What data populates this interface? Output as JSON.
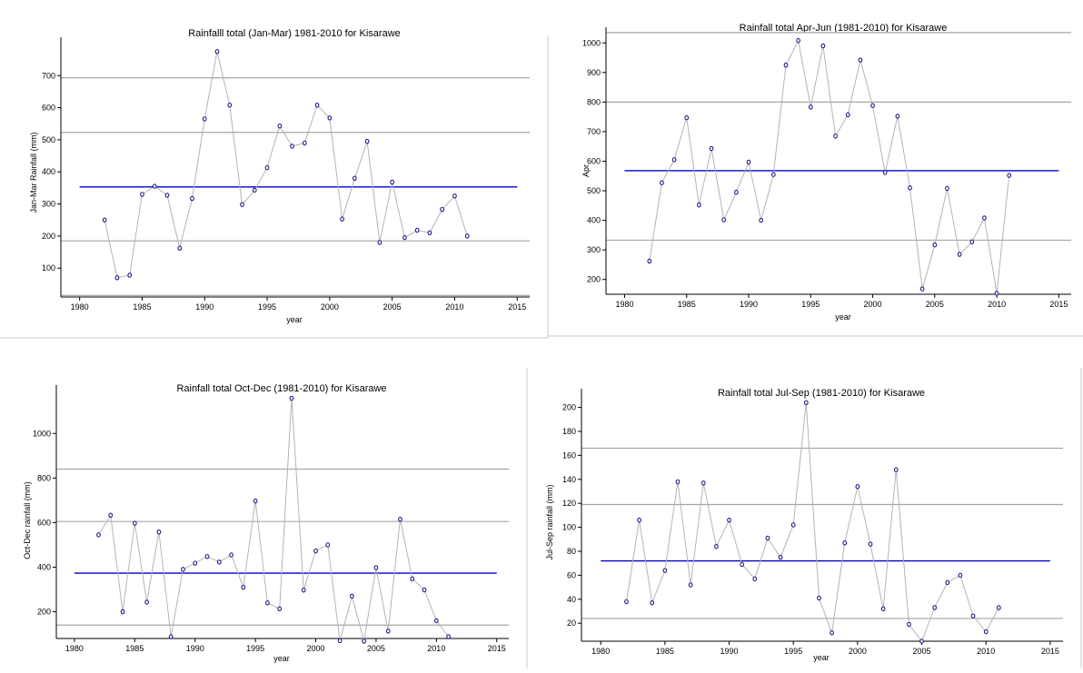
{
  "chart_data": [
    {
      "type": "line",
      "title": "Rainfalll total (Jan-Mar) 1981-2010 for Kisarawe",
      "xlabel": "year",
      "ylabel": "Jan-Mar Rainfall (mm)",
      "xlim": [
        1978.5,
        2016
      ],
      "ylim": [
        10,
        780
      ],
      "xticks": [
        1980,
        1985,
        1990,
        1995,
        2000,
        2005,
        2010,
        2015
      ],
      "yticks": [
        100,
        200,
        300,
        400,
        500,
        600,
        700
      ],
      "x": [
        1982,
        1983,
        1984,
        1985,
        1986,
        1987,
        1988,
        1989,
        1990,
        1991,
        1992,
        1993,
        1994,
        1995,
        1996,
        1997,
        1998,
        1999,
        2000,
        2001,
        2002,
        2003,
        2004,
        2005,
        2006,
        2007,
        2008,
        2009,
        2010,
        2011
      ],
      "y": [
        250,
        70,
        78,
        330,
        355,
        327,
        162,
        317,
        565,
        775,
        608,
        298,
        343,
        413,
        543,
        480,
        490,
        608,
        568,
        253,
        380,
        495,
        180,
        368,
        195,
        218,
        210,
        283,
        325,
        200
      ],
      "mean": 353,
      "reference_lines": [
        15,
        185,
        523,
        693
      ],
      "colors": {
        "series": "#b4b4b4",
        "marker": "#1a1a8c",
        "mean": "#0000c8",
        "ref": "#a6a6a6",
        "axis": "#000000"
      }
    },
    {
      "type": "line",
      "title": "Rainfall total  Apr-Jun (1981-2010) for Kisarawe",
      "xlabel": "year",
      "ylabel": "Apr",
      "xlim": [
        1978.5,
        2016
      ],
      "ylim": [
        150,
        1010
      ],
      "xticks": [
        1980,
        1985,
        1990,
        1995,
        2000,
        2005,
        2010,
        2015
      ],
      "yticks": [
        200,
        300,
        400,
        500,
        600,
        700,
        800,
        900,
        1000
      ],
      "x": [
        1982,
        1983,
        1984,
        1985,
        1986,
        1987,
        1988,
        1989,
        1990,
        1991,
        1992,
        1993,
        1994,
        1995,
        1996,
        1997,
        1998,
        1999,
        2000,
        2001,
        2002,
        2003,
        2004,
        2005,
        2006,
        2007,
        2008,
        2009,
        2010,
        2011
      ],
      "y": [
        262,
        527,
        605,
        747,
        452,
        643,
        402,
        495,
        597,
        400,
        555,
        925,
        1008,
        783,
        990,
        685,
        757,
        942,
        788,
        562,
        752,
        510,
        168,
        317,
        508,
        285,
        327,
        408,
        153,
        552
      ],
      "mean": 568,
      "reference_lines": [
        333,
        800,
        1035
      ],
      "colors": {
        "series": "#b4b4b4",
        "marker": "#1a1a8c",
        "mean": "#0000c8",
        "ref": "#a6a6a6",
        "axis": "#000000"
      }
    },
    {
      "type": "line",
      "title": "Rainfall total Oct-Dec (1981-2010) for Kisarawe",
      "xlabel": "year",
      "ylabel": "Oct-Dec rainfall (mm)",
      "xlim": [
        1978.5,
        2016
      ],
      "ylim": [
        80,
        1160
      ],
      "xticks": [
        1980,
        1985,
        1990,
        1995,
        2000,
        2005,
        2010,
        2015
      ],
      "yticks": [
        200,
        400,
        600,
        800,
        1000
      ],
      "x": [
        1982,
        1983,
        1984,
        1985,
        1986,
        1987,
        1988,
        1989,
        1990,
        1991,
        1992,
        1993,
        1994,
        1995,
        1996,
        1997,
        1998,
        1999,
        2000,
        2001,
        2002,
        2003,
        2004,
        2005,
        2006,
        2007,
        2008,
        2009,
        2010,
        2011
      ],
      "y": [
        545,
        633,
        200,
        597,
        243,
        558,
        88,
        390,
        418,
        448,
        423,
        455,
        310,
        697,
        240,
        213,
        1158,
        297,
        473,
        500,
        70,
        270,
        68,
        398,
        113,
        615,
        348,
        298,
        160,
        88
      ],
      "mean": 373,
      "reference_lines": [
        140,
        605,
        840
      ],
      "colors": {
        "series": "#b4b4b4",
        "marker": "#1a1a8c",
        "mean": "#0000c8",
        "ref": "#a6a6a6",
        "axis": "#000000"
      }
    },
    {
      "type": "line",
      "title": "Rainfall total Jul-Sep (1981-2010) for Kisarawe",
      "xlabel": "year",
      "ylabel": "Jul-Sep rainfall (mm)",
      "xlim": [
        1978.5,
        2016
      ],
      "ylim": [
        5,
        205
      ],
      "xticks": [
        1980,
        1985,
        1990,
        1995,
        2000,
        2005,
        2010,
        2015
      ],
      "yticks": [
        20,
        40,
        60,
        80,
        100,
        120,
        140,
        160,
        180,
        200
      ],
      "x": [
        1982,
        1983,
        1984,
        1985,
        1986,
        1987,
        1988,
        1989,
        1990,
        1991,
        1992,
        1993,
        1994,
        1995,
        1996,
        1997,
        1998,
        1999,
        2000,
        2001,
        2002,
        2003,
        2004,
        2005,
        2006,
        2007,
        2008,
        2009,
        2010,
        2011
      ],
      "y": [
        38,
        106,
        37,
        64,
        138,
        52,
        137,
        84,
        106,
        69,
        57,
        91,
        75,
        102,
        204,
        41,
        12,
        87,
        134,
        86,
        32,
        148,
        19,
        5,
        33,
        54,
        60,
        26,
        13,
        33
      ],
      "mean": 72,
      "reference_lines": [
        24,
        119,
        166
      ],
      "colors": {
        "series": "#b4b4b4",
        "marker": "#1a1a8c",
        "mean": "#0000c8",
        "ref": "#a6a6a6",
        "axis": "#000000"
      }
    }
  ]
}
